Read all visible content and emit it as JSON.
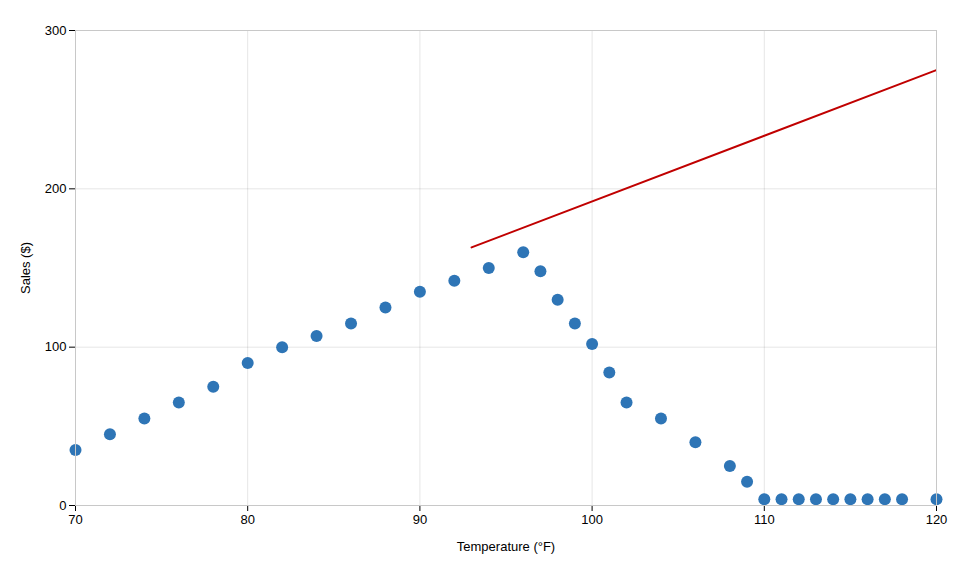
{
  "chart_data": {
    "type": "scatter",
    "xlabel": "Temperature (°F)",
    "ylabel": "Sales ($)",
    "xlim": [
      70,
      120
    ],
    "ylim": [
      0,
      300
    ],
    "xticks": [
      70,
      80,
      90,
      100,
      110,
      120
    ],
    "yticks": [
      0,
      100,
      200,
      300
    ],
    "grid": true,
    "series": [
      {
        "type": "line",
        "color": "#C00000",
        "x": [
          93,
          120
        ],
        "values": [
          163,
          275
        ]
      },
      {
        "type": "scatter",
        "color": "#2E75B6",
        "x": [
          70,
          72,
          74,
          76,
          78,
          80,
          82,
          84,
          86,
          88,
          90,
          92,
          94,
          96,
          97,
          98,
          99,
          100,
          101,
          102,
          104,
          106,
          108,
          109,
          110,
          111,
          112,
          113,
          114,
          115,
          116,
          117,
          118,
          120
        ],
        "values": [
          35,
          45,
          55,
          65,
          75,
          90,
          100,
          107,
          115,
          125,
          135,
          142,
          150,
          160,
          148,
          130,
          115,
          102,
          84,
          65,
          55,
          40,
          25,
          15,
          4,
          4,
          4,
          4,
          4,
          4,
          4,
          4,
          4,
          4
        ]
      }
    ]
  }
}
